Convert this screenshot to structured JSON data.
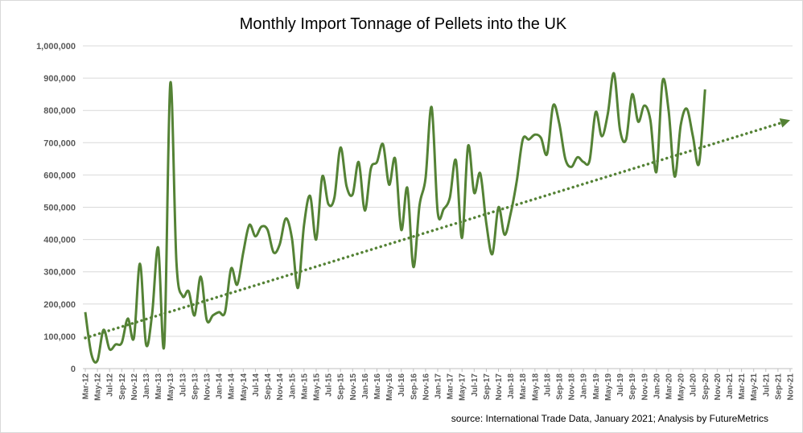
{
  "chart_data": {
    "type": "line",
    "title": "Monthly Import Tonnage of Pellets into the UK",
    "source": "source: International Trade Data, January 2021;  Analysis by FutureMetrics",
    "ylim": [
      0,
      1000000
    ],
    "y_ticks": [
      "0",
      "100,000",
      "200,000",
      "300,000",
      "400,000",
      "500,000",
      "600,000",
      "700,000",
      "800,000",
      "900,000",
      "1,000,000"
    ],
    "x_tick_labels": [
      "Mar-12",
      "May-12",
      "Jul-12",
      "Sep-12",
      "Nov-12",
      "Jan-13",
      "Mar-13",
      "May-13",
      "Jul-13",
      "Sep-13",
      "Nov-13",
      "Jan-14",
      "Mar-14",
      "May-14",
      "Jul-14",
      "Sep-14",
      "Nov-14",
      "Jan-15",
      "Mar-15",
      "May-15",
      "Jul-15",
      "Sep-15",
      "Nov-15",
      "Jan-16",
      "Mar-16",
      "May-16",
      "Jul-16",
      "Sep-16",
      "Nov-16",
      "Jan-17",
      "Mar-17",
      "May-17",
      "Jul-17",
      "Sep-17",
      "Nov-17",
      "Jan-18",
      "Mar-18",
      "May-18",
      "Jul-18",
      "Sep-18",
      "Nov-18",
      "Jan-19",
      "Mar-19",
      "May-19",
      "Jul-19",
      "Sep-19",
      "Nov-19",
      "Jan-20",
      "Mar-20",
      "May-20",
      "Jul-20",
      "Sep-20",
      "Nov-20",
      "Jan-21",
      "Mar-21",
      "May-21",
      "Jul-21",
      "Sep-21",
      "Nov-21"
    ],
    "grid": true,
    "series": [
      {
        "type": "line",
        "color": "#548235",
        "start": "Mar-12",
        "values": [
          175000,
          45000,
          25000,
          120000,
          60000,
          75000,
          80000,
          155000,
          95000,
          325000,
          75000,
          170000,
          375000,
          75000,
          885000,
          330000,
          225000,
          240000,
          165000,
          285000,
          150000,
          165000,
          175000,
          175000,
          310000,
          260000,
          360000,
          445000,
          410000,
          440000,
          430000,
          360000,
          385000,
          465000,
          405000,
          250000,
          445000,
          535000,
          400000,
          595000,
          510000,
          530000,
          685000,
          565000,
          540000,
          640000,
          490000,
          620000,
          640000,
          695000,
          570000,
          650000,
          430000,
          560000,
          315000,
          505000,
          590000,
          810000,
          485000,
          495000,
          530000,
          645000,
          405000,
          690000,
          545000,
          605000,
          450000,
          355000,
          500000,
          415000,
          480000,
          580000,
          710000,
          710000,
          725000,
          715000,
          665000,
          815000,
          760000,
          650000,
          625000,
          655000,
          640000,
          645000,
          795000,
          720000,
          790000,
          915000,
          740000,
          710000,
          850000,
          765000,
          815000,
          770000,
          610000,
          890000,
          800000,
          595000,
          755000,
          805000,
          720000,
          635000,
          865000
        ]
      },
      {
        "type": "trendline",
        "style": "dotted",
        "color": "#548235",
        "from": [
          "Mar-12",
          95000
        ],
        "to": [
          "Nov-21",
          770000
        ]
      }
    ]
  }
}
